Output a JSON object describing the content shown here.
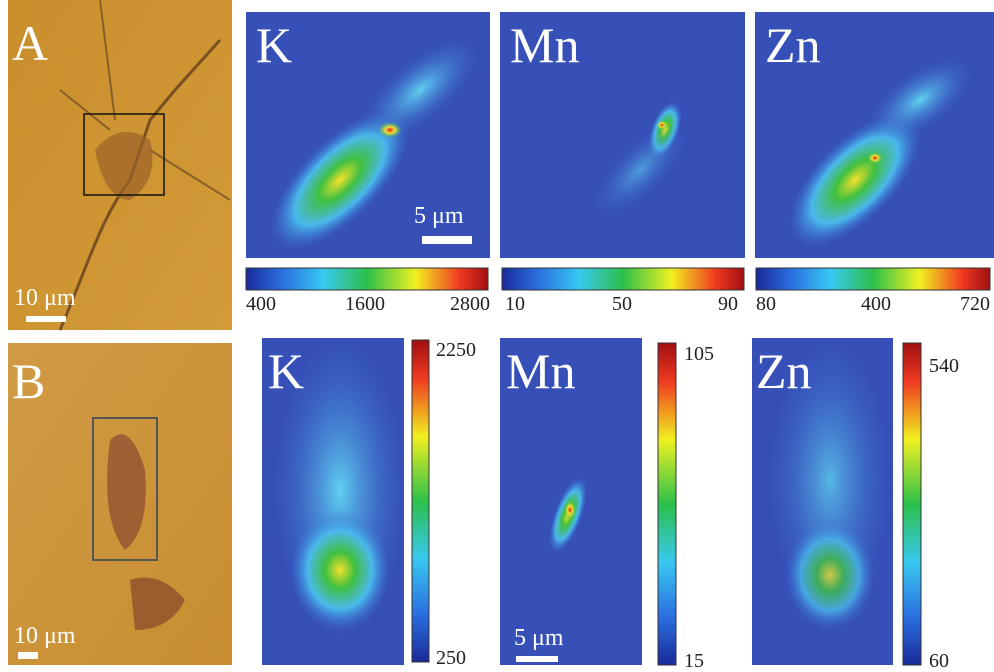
{
  "row_a": {
    "photo_label": "A",
    "photo_scale_bar": "10 μm",
    "map_scale_bar": "5 μm",
    "maps": [
      {
        "element": "K",
        "colorbar_ticks": [
          400,
          1600,
          2800
        ]
      },
      {
        "element": "Mn",
        "colorbar_ticks": [
          10,
          50,
          90
        ]
      },
      {
        "element": "Zn",
        "colorbar_ticks": [
          80,
          400,
          720
        ]
      }
    ]
  },
  "row_b": {
    "photo_label": "B",
    "photo_scale_bar": "10 μm",
    "map_scale_bar": "5 μm",
    "maps": [
      {
        "element": "K",
        "colorbar_ticks": [
          2250,
          250
        ]
      },
      {
        "element": "Mn",
        "colorbar_ticks": [
          105,
          15
        ]
      },
      {
        "element": "Zn",
        "colorbar_ticks": [
          540,
          60
        ]
      }
    ]
  }
}
